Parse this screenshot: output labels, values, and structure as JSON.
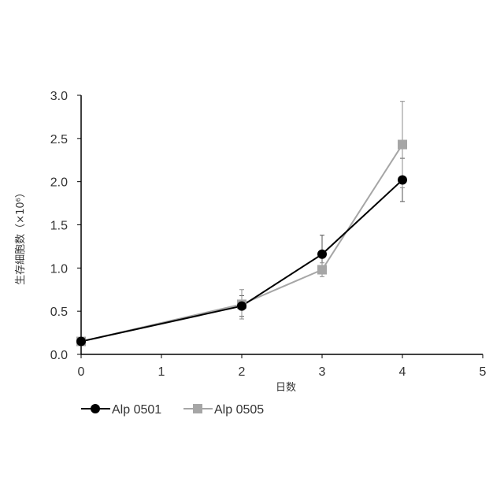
{
  "chart_data": {
    "type": "line",
    "title": "",
    "xlabel": "日数",
    "ylabel": "生存細胞数（×10⁶）",
    "xlim": [
      0,
      5
    ],
    "ylim": [
      0,
      3.0
    ],
    "x_ticks": [
      "0",
      "1",
      "2",
      "3",
      "4",
      "5"
    ],
    "y_ticks": [
      "0.0",
      "0.5",
      "1.0",
      "1.5",
      "2.0",
      "2.5",
      "3.0"
    ],
    "grid": false,
    "legend_position": "bottom-left",
    "series": [
      {
        "name": "Alp 0501",
        "color": "#000000",
        "marker": "circle",
        "x": [
          0,
          2,
          3,
          4
        ],
        "y": [
          0.15,
          0.56,
          1.16,
          2.02
        ],
        "error": [
          0.02,
          0.12,
          0.22,
          0.25
        ]
      },
      {
        "name": "Alp 0505",
        "color": "#a6a6a6",
        "marker": "square",
        "x": [
          0,
          2,
          3,
          4
        ],
        "y": [
          0.15,
          0.58,
          0.98,
          2.43
        ],
        "error": [
          0.02,
          0.17,
          0.08,
          0.5
        ]
      }
    ]
  }
}
